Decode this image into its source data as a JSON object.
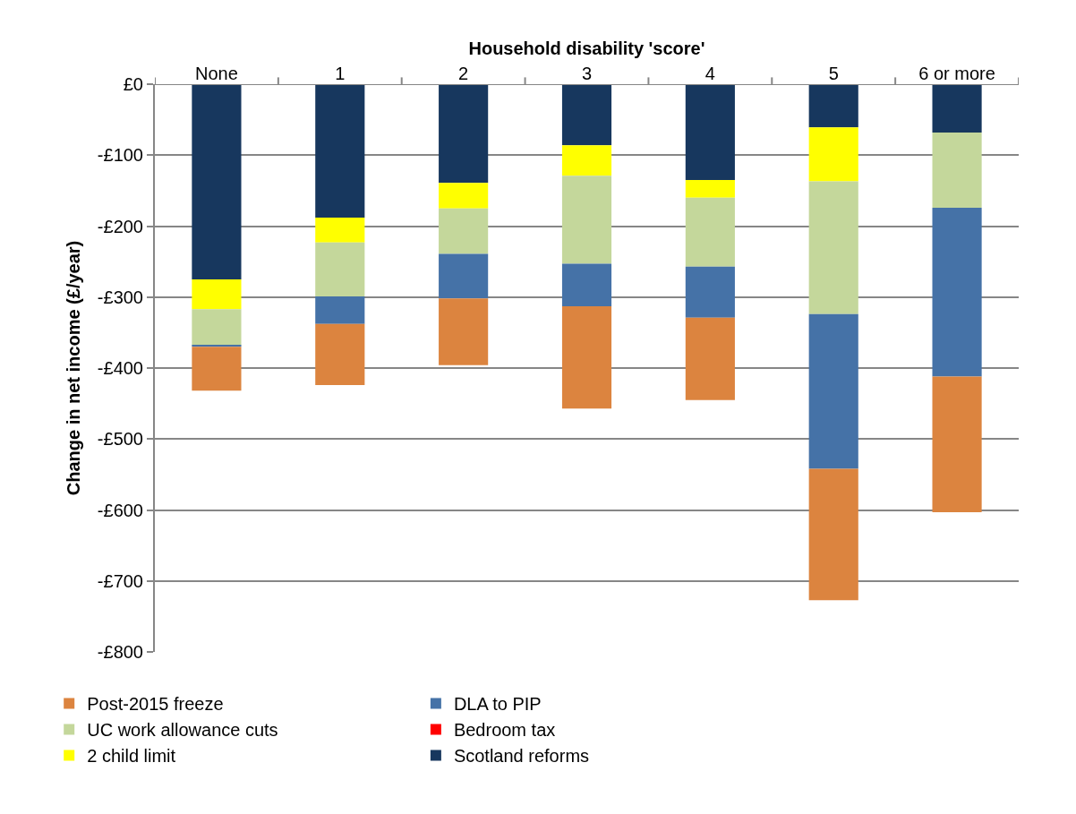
{
  "chart_data": {
    "type": "bar",
    "stacked": true,
    "xlabel": "Household disability 'score'",
    "ylabel": "Change in net income (£/year)",
    "categories": [
      "None",
      "1",
      "2",
      "3",
      "4",
      "5",
      "6 or more"
    ],
    "series": [
      {
        "name": "Scotland reforms",
        "color": "#17375e",
        "values": [
          -275,
          -188,
          -139,
          -86,
          -135,
          -61,
          -68
        ]
      },
      {
        "name": "2 child limit",
        "color": "#ffff00",
        "values": [
          -42,
          -35,
          -36,
          -43,
          -25,
          -76,
          0
        ]
      },
      {
        "name": "Bedroom tax",
        "color": "#ff0000",
        "values": [
          0,
          0,
          0,
          0,
          0,
          0,
          0
        ]
      },
      {
        "name": "UC work allowance cuts",
        "color": "#c4d79b",
        "values": [
          -51,
          -76,
          -64,
          -124,
          -97,
          -187,
          -106
        ]
      },
      {
        "name": "DLA to PIP",
        "color": "#4572a7",
        "values": [
          -2,
          -39,
          -63,
          -60,
          -72,
          -218,
          -238
        ]
      },
      {
        "name": "Post-2015 freeze",
        "color": "#dc843f",
        "values": [
          -62,
          -86,
          -94,
          -144,
          -116,
          -185,
          -191
        ]
      }
    ],
    "ylim": [
      -800,
      0
    ],
    "yticks": [
      {
        "value": 0,
        "label": "£0"
      },
      {
        "value": -100,
        "label": "-£100"
      },
      {
        "value": -200,
        "label": "-£200"
      },
      {
        "value": -300,
        "label": "-£300"
      },
      {
        "value": -400,
        "label": "-£400"
      },
      {
        "value": -500,
        "label": "-£500"
      },
      {
        "value": -600,
        "label": "-£600"
      },
      {
        "value": -700,
        "label": "-£700"
      },
      {
        "value": -800,
        "label": "-£800"
      }
    ],
    "grid": "y",
    "legend": "bottom"
  }
}
